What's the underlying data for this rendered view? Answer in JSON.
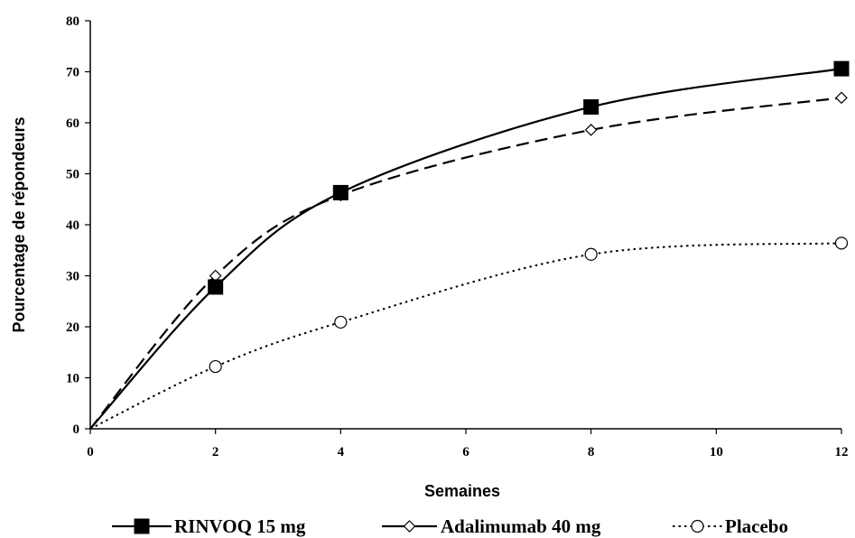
{
  "chart_data": {
    "type": "line",
    "title": "",
    "xlabel": "Semaines",
    "ylabel": "Pourcentage de répondeurs",
    "xlim": [
      0,
      12
    ],
    "ylim": [
      0,
      80
    ],
    "x_ticks": [
      0,
      2,
      4,
      6,
      8,
      10,
      12
    ],
    "y_ticks": [
      0,
      10,
      20,
      30,
      40,
      50,
      60,
      70,
      80
    ],
    "grid": false,
    "legend_position": "bottom",
    "series": [
      {
        "name": "RINVOQ 15 mg",
        "x": [
          0,
          2,
          4,
          8,
          12
        ],
        "values": [
          0,
          27.8,
          46.3,
          63.1,
          70.6
        ],
        "marker": "filled-square",
        "line_style": "solid",
        "color": "#000000"
      },
      {
        "name": "Adalimumab 40 mg",
        "x": [
          0,
          2,
          4,
          8,
          12
        ],
        "values": [
          0,
          30.0,
          45.8,
          58.6,
          64.9
        ],
        "marker": "open-diamond",
        "line_style": "dashed",
        "color": "#000000"
      },
      {
        "name": "Placebo",
        "x": [
          0,
          2,
          4,
          8,
          12
        ],
        "values": [
          0,
          12.2,
          20.9,
          34.2,
          36.4
        ],
        "marker": "open-circle",
        "line_style": "dotted",
        "color": "#000000"
      }
    ]
  }
}
